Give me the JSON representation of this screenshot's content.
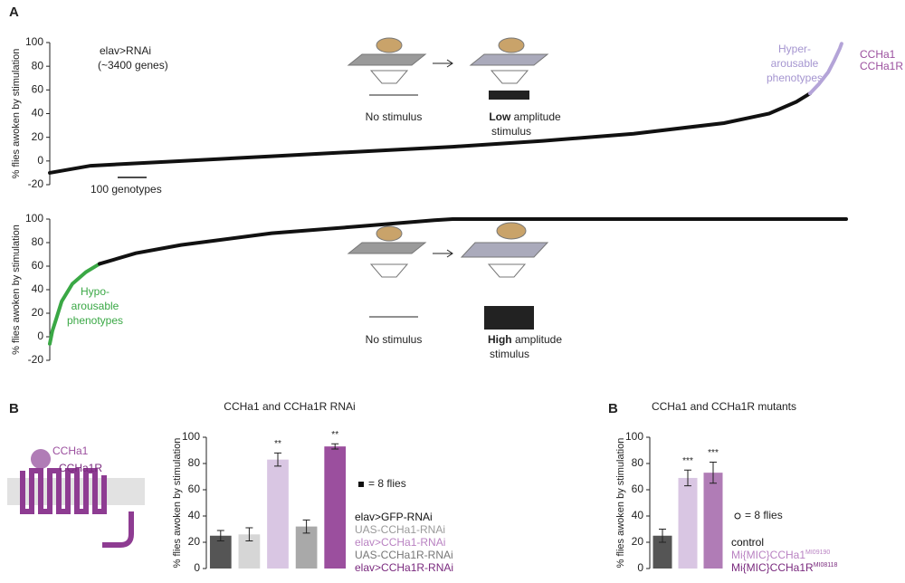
{
  "figure": {
    "panels": [
      "A",
      "B",
      "B"
    ]
  },
  "diagram": {
    "top_note": [
      "elav>RNAi",
      "(~3400 genes)"
    ],
    "scale_bar": "100 genotypes",
    "no_stimulus": "No stimulus",
    "low": {
      "bold": "Low",
      "rest": "amplitude",
      "line2": "stimulus"
    },
    "high": {
      "bold": "High",
      "rest": "amplitude",
      "line2": "stimulus"
    },
    "hyper": [
      "Hyper-",
      "arousable",
      "phenotypes"
    ],
    "hypo": [
      "Hypo-",
      "arousable",
      "phenotypes"
    ],
    "gene_labels": [
      "CCHa1",
      "CCHa1R"
    ],
    "receptor": {
      "ligand": "CCHa1",
      "receptor": "CCHa1R"
    }
  },
  "chart_data": [
    {
      "type": "line",
      "ylabel": "% flies awoken by stimulation",
      "ylim": [
        -20,
        100
      ],
      "yticks": [
        -20,
        0,
        20,
        40,
        60,
        80,
        100
      ],
      "xlim": [
        0,
        2750
      ],
      "series": [
        {
          "color": "#111111",
          "x": [
            0,
            141,
            453,
            766,
            1078,
            1391,
            1703,
            2016,
            2328,
            2484,
            2578,
            2625
          ],
          "values": [
            -10,
            -4,
            0,
            4,
            8,
            12,
            17,
            23,
            32,
            40,
            50,
            57
          ]
        },
        {
          "color": "#b4a4d8",
          "x": [
            2625,
            2656,
            2688,
            2709,
            2728,
            2734
          ],
          "values": [
            57,
            65,
            75,
            85,
            95,
            99
          ]
        }
      ]
    },
    {
      "type": "line",
      "ylabel": "% flies awoken by stimulation",
      "ylim": [
        -20,
        100
      ],
      "yticks": [
        -20,
        0,
        20,
        40,
        60,
        80,
        100
      ],
      "xlim": [
        0,
        2750
      ],
      "series": [
        {
          "color": "#3aa845",
          "x": [
            0,
            9,
            22,
            41,
            78,
            125,
            172
          ],
          "values": [
            -6,
            5,
            15,
            30,
            45,
            55,
            62
          ]
        },
        {
          "color": "#111111",
          "x": [
            172,
            297,
            453,
            766,
            1078,
            1328,
            1391,
            2750
          ],
          "values": [
            62,
            71,
            78,
            88,
            94,
            99,
            100,
            100
          ]
        }
      ]
    },
    {
      "type": "bar",
      "title": "CCHa1 and CCHa1R RNAi",
      "ylabel": "% flies awoken by stimulation",
      "ylim": [
        0,
        100
      ],
      "yticks": [
        0,
        20,
        40,
        60,
        80,
        100
      ],
      "categories": [
        "elav>GFP-RNAi",
        "UAS-CCHa1-RNAi",
        "elav>CCHa1-RNAi",
        "UAS-CCHa1R-RNAi",
        "elav>CCHa1R-RNAi"
      ],
      "values": [
        25,
        26,
        83,
        32,
        93
      ],
      "errors": [
        4,
        5,
        5,
        5,
        2
      ],
      "colors": [
        "#555555",
        "#d6d6d6",
        "#d9c6e3",
        "#a9a9a9",
        "#9b4f9e"
      ],
      "label_colors": [
        "#111111",
        "#999999",
        "#b982c2",
        "#777777",
        "#7a2a7e"
      ],
      "annotations": [
        null,
        null,
        "**",
        null,
        "**"
      ],
      "legend": "= 8 flies",
      "legend_marker": "square"
    },
    {
      "type": "bar",
      "title": "CCHa1 and CCHa1R mutants",
      "ylabel": "% flies awoken by stimulation",
      "ylim": [
        0,
        100
      ],
      "yticks": [
        0,
        20,
        40,
        60,
        80,
        100
      ],
      "categories": [
        "control",
        "Mi{MIC}CCHa1",
        "Mi{MIC}CCHa1R"
      ],
      "category_superscripts": [
        null,
        "MI09190",
        "MI08118"
      ],
      "values": [
        25,
        69,
        73
      ],
      "errors": [
        5,
        6,
        8
      ],
      "colors": [
        "#555555",
        "#d9c6e3",
        "#b07cb6"
      ],
      "label_colors": [
        "#111111",
        "#b982c2",
        "#7a2a7e"
      ],
      "annotations": [
        null,
        "***",
        "***"
      ],
      "legend": "= 8 flies",
      "legend_marker": "circle"
    }
  ]
}
